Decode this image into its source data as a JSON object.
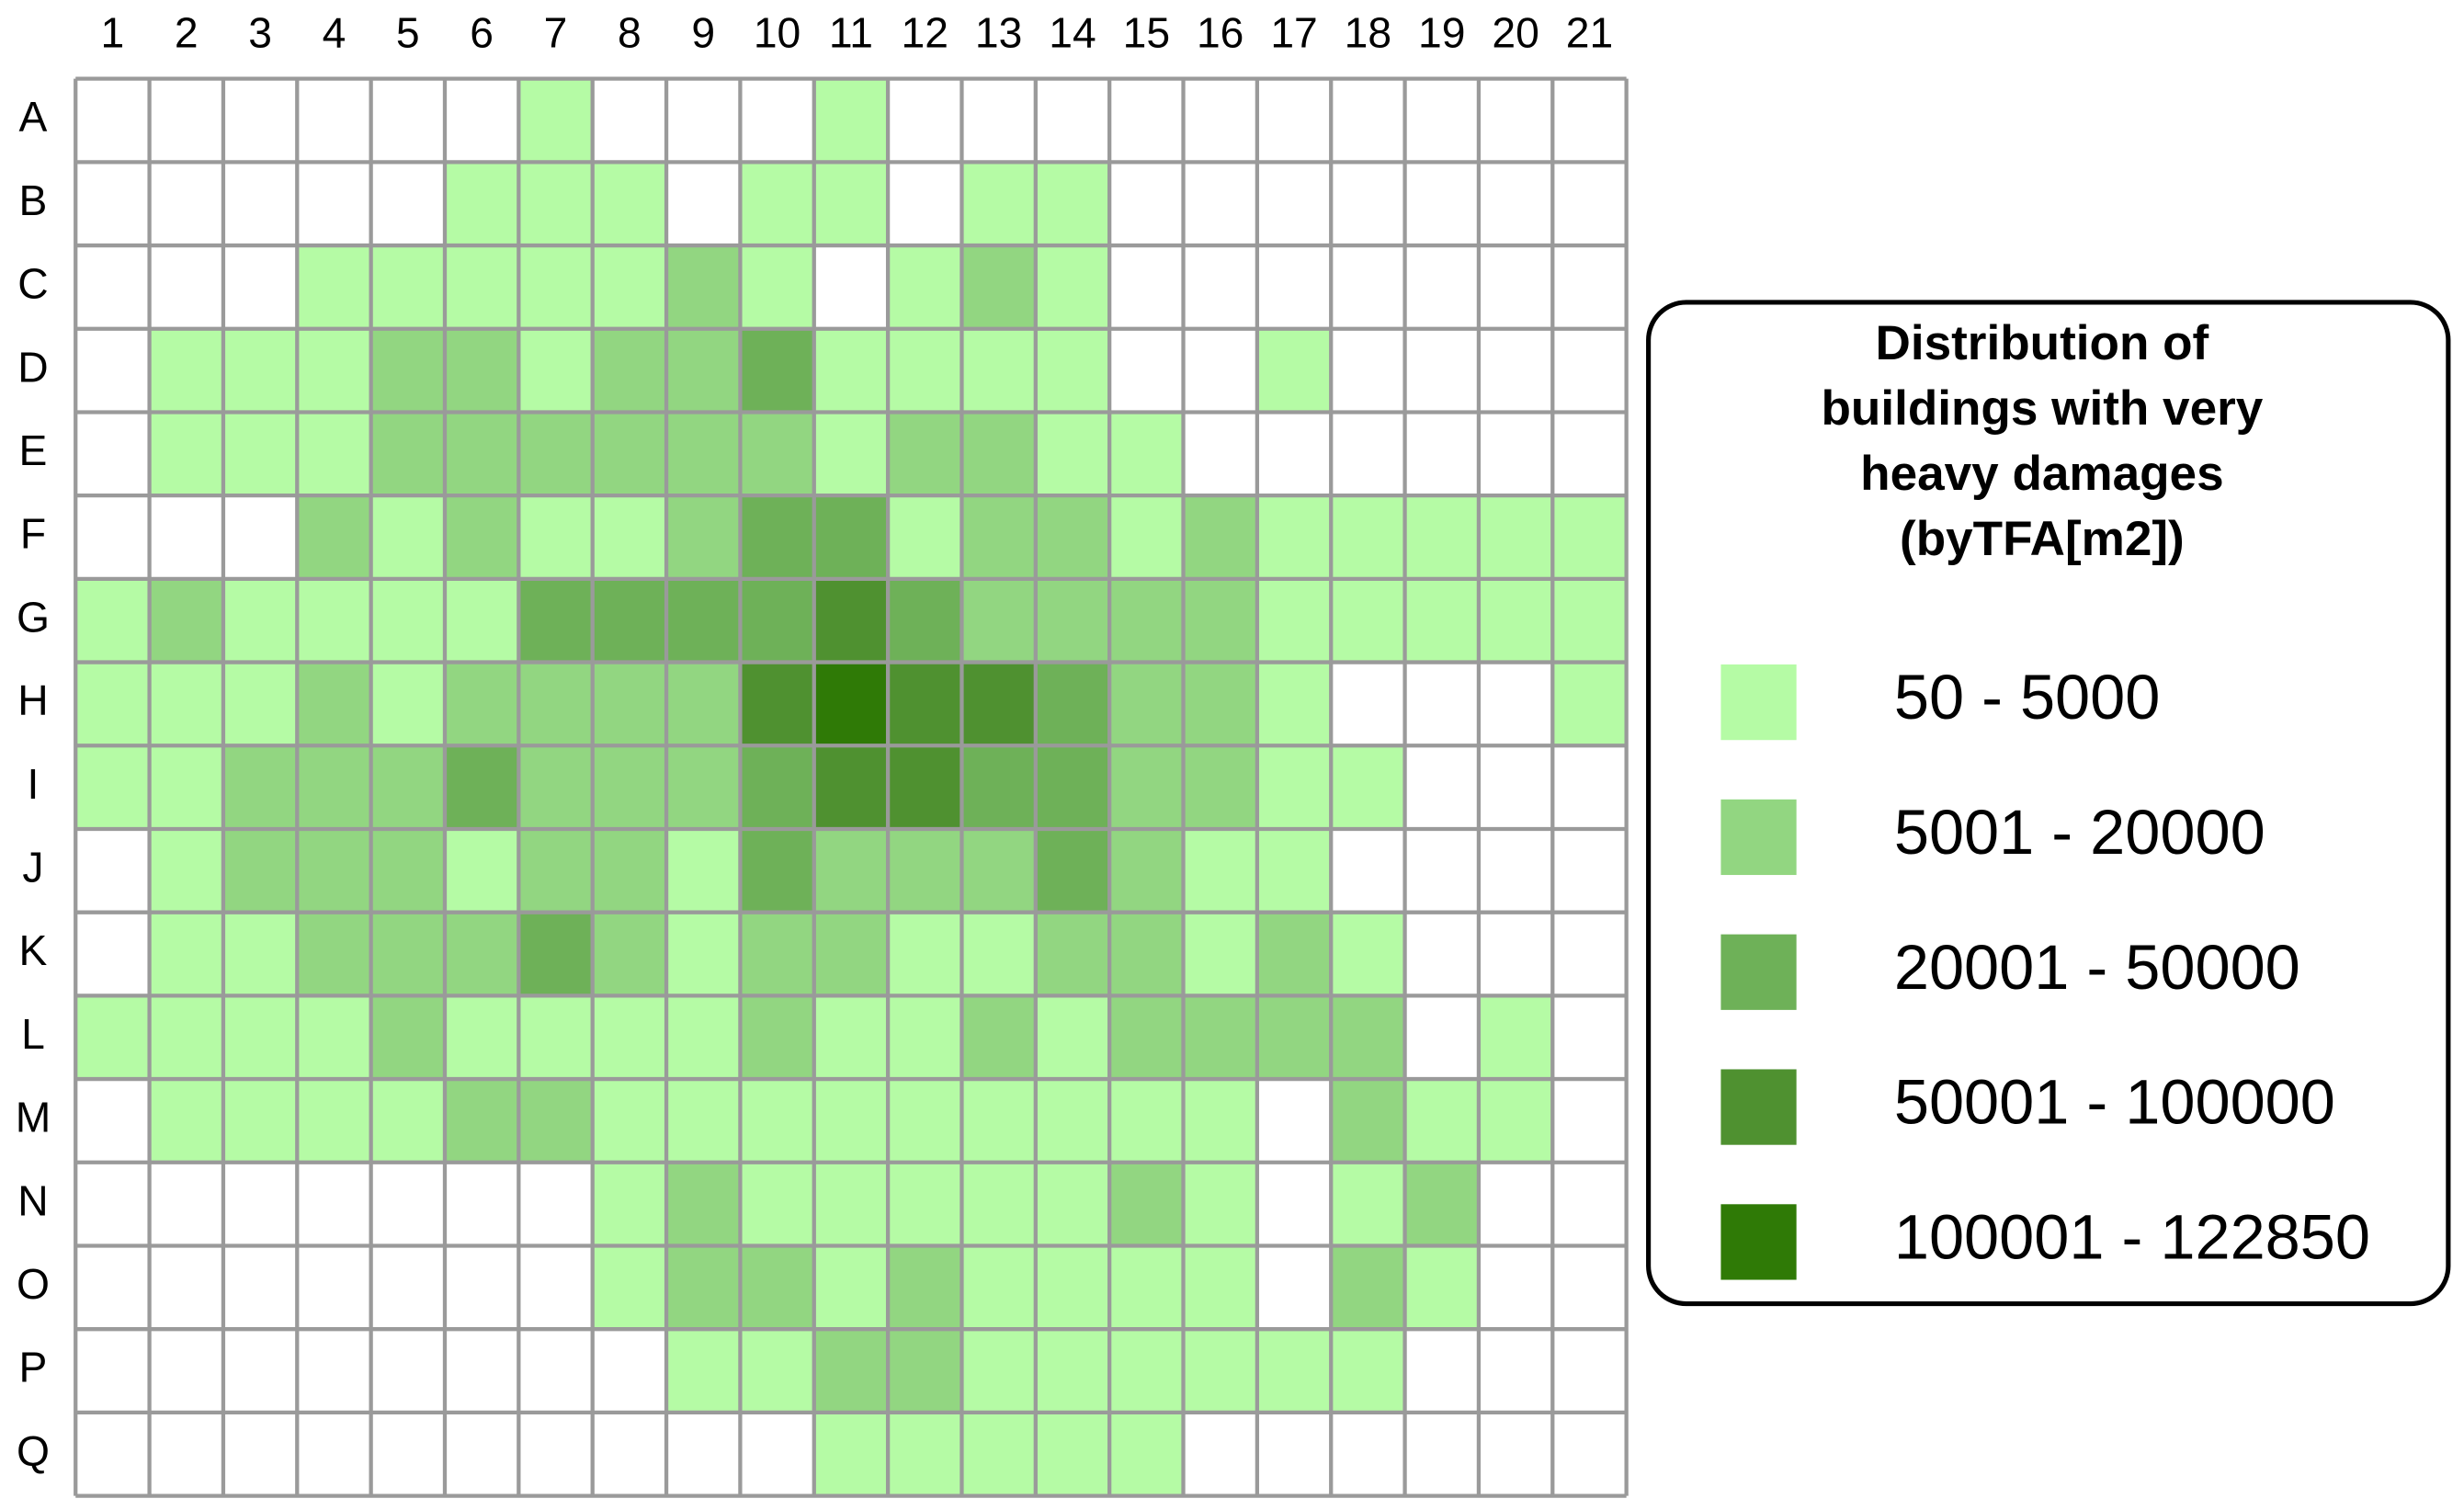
{
  "grid": {
    "column_labels": [
      "1",
      "2",
      "3",
      "4",
      "5",
      "6",
      "7",
      "8",
      "9",
      "10",
      "11",
      "12",
      "13",
      "14",
      "15",
      "16",
      "17",
      "18",
      "19",
      "20",
      "21"
    ],
    "row_labels": [
      "A",
      "B",
      "C",
      "D",
      "E",
      "F",
      "G",
      "H",
      "I",
      "J",
      "K",
      "L",
      "M",
      "N",
      "O",
      "P",
      "Q"
    ],
    "cells": [
      [
        0,
        0,
        0,
        0,
        0,
        0,
        1,
        0,
        0,
        0,
        1,
        0,
        0,
        0,
        0,
        0,
        0,
        0,
        0,
        0,
        0
      ],
      [
        0,
        0,
        0,
        0,
        0,
        1,
        1,
        1,
        0,
        1,
        1,
        0,
        1,
        1,
        0,
        0,
        0,
        0,
        0,
        0,
        0
      ],
      [
        0,
        0,
        0,
        1,
        1,
        1,
        1,
        1,
        2,
        1,
        0,
        1,
        2,
        1,
        0,
        0,
        0,
        0,
        0,
        0,
        0
      ],
      [
        0,
        1,
        1,
        1,
        2,
        2,
        1,
        2,
        2,
        3,
        1,
        1,
        1,
        1,
        0,
        0,
        1,
        0,
        0,
        0,
        0
      ],
      [
        0,
        1,
        1,
        1,
        2,
        2,
        2,
        2,
        2,
        2,
        1,
        2,
        2,
        1,
        1,
        0,
        0,
        0,
        0,
        0,
        0
      ],
      [
        0,
        0,
        0,
        2,
        1,
        2,
        1,
        1,
        2,
        3,
        3,
        1,
        2,
        2,
        1,
        2,
        1,
        1,
        1,
        1,
        1
      ],
      [
        1,
        2,
        1,
        1,
        1,
        1,
        3,
        3,
        3,
        3,
        4,
        3,
        2,
        2,
        2,
        2,
        1,
        1,
        1,
        1,
        1
      ],
      [
        1,
        1,
        1,
        2,
        1,
        2,
        2,
        2,
        2,
        4,
        5,
        4,
        4,
        3,
        2,
        2,
        1,
        0,
        0,
        0,
        1
      ],
      [
        1,
        1,
        2,
        2,
        2,
        3,
        2,
        2,
        2,
        3,
        4,
        4,
        3,
        3,
        2,
        2,
        1,
        1,
        0,
        0,
        0
      ],
      [
        0,
        1,
        2,
        2,
        2,
        1,
        2,
        2,
        1,
        3,
        2,
        2,
        2,
        3,
        2,
        1,
        1,
        0,
        0,
        0,
        0
      ],
      [
        0,
        1,
        1,
        2,
        2,
        2,
        3,
        2,
        1,
        2,
        2,
        1,
        1,
        2,
        2,
        1,
        2,
        1,
        0,
        0,
        0
      ],
      [
        1,
        1,
        1,
        1,
        2,
        1,
        1,
        1,
        1,
        2,
        1,
        1,
        2,
        1,
        2,
        2,
        2,
        2,
        0,
        1,
        0
      ],
      [
        0,
        1,
        1,
        1,
        1,
        2,
        2,
        1,
        1,
        1,
        1,
        1,
        1,
        1,
        1,
        1,
        0,
        2,
        1,
        1,
        0
      ],
      [
        0,
        0,
        0,
        0,
        0,
        0,
        0,
        1,
        2,
        1,
        1,
        1,
        1,
        1,
        2,
        1,
        0,
        1,
        2,
        0,
        0
      ],
      [
        0,
        0,
        0,
        0,
        0,
        0,
        0,
        1,
        2,
        2,
        1,
        2,
        1,
        1,
        1,
        1,
        0,
        2,
        1,
        0,
        0
      ],
      [
        0,
        0,
        0,
        0,
        0,
        0,
        0,
        0,
        1,
        1,
        2,
        2,
        1,
        1,
        1,
        1,
        1,
        1,
        0,
        0,
        0
      ],
      [
        0,
        0,
        0,
        0,
        0,
        0,
        0,
        0,
        0,
        0,
        1,
        1,
        1,
        1,
        1,
        0,
        0,
        0,
        0,
        0,
        0
      ]
    ],
    "empty_color": "#ffffff"
  },
  "legend": {
    "title_lines": [
      "Distribution of",
      "buildings with very",
      "heavy damages",
      "(byTFA[m2])"
    ],
    "items": [
      {
        "label": "50 - 5000",
        "color": "#b5fba5"
      },
      {
        "label": "5001 - 20000",
        "color": "#92d681"
      },
      {
        "label": "20001 - 50000",
        "color": "#6eb158"
      },
      {
        "label": "50001 - 100000",
        "color": "#4f9130"
      },
      {
        "label": "100001 - 122850",
        "color": "#2f7a06"
      }
    ]
  }
}
